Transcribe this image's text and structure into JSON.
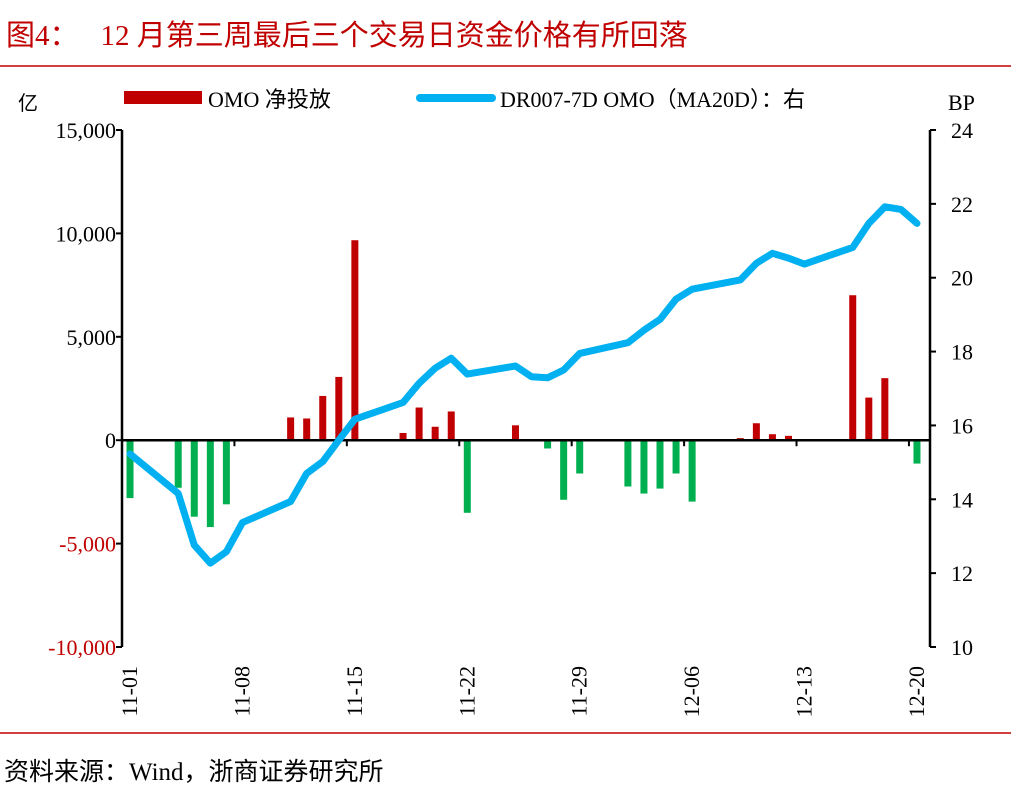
{
  "title": {
    "figure_label": "图4：",
    "text": "12 月第三周最后三个交易日资金价格有所回落"
  },
  "source": "资料来源：Wind，浙商证券研究所",
  "colors": {
    "title": "#c00000",
    "bar_positive": "#c00000",
    "bar_negative": "#00b050",
    "line": "#00b0f0",
    "rule": "#c00000",
    "negative_label": "#c00000"
  },
  "chart_data": {
    "type": "bar+line",
    "left_unit": "亿",
    "right_unit": "BP",
    "left_ylim": [
      -10000,
      15000
    ],
    "left_ticks": [
      "15,000",
      "10,000",
      "5,000",
      "0",
      "-5,000",
      "-10,000"
    ],
    "left_tick_values": [
      15000,
      10000,
      5000,
      0,
      -5000,
      -10000
    ],
    "right_ylim": [
      10,
      24
    ],
    "right_ticks": [
      "24",
      "22",
      "20",
      "18",
      "16",
      "14",
      "12",
      "10"
    ],
    "right_tick_values": [
      24,
      22,
      20,
      18,
      16,
      14,
      12,
      10
    ],
    "x_range": [
      "11-01",
      "12-20"
    ],
    "x_ticks": [
      "11-01",
      "11-08",
      "11-15",
      "11-22",
      "11-29",
      "12-06",
      "12-13",
      "12-20"
    ],
    "legend_placement": "top",
    "grid": false,
    "x": [
      "11-01",
      "11-04",
      "11-05",
      "11-06",
      "11-07",
      "11-08",
      "11-11",
      "11-12",
      "11-13",
      "11-14",
      "11-15",
      "11-18",
      "11-19",
      "11-20",
      "11-21",
      "11-22",
      "11-25",
      "11-26",
      "11-27",
      "11-28",
      "11-29",
      "12-02",
      "12-03",
      "12-04",
      "12-05",
      "12-06",
      "12-09",
      "12-10",
      "12-11",
      "12-12",
      "12-13",
      "12-16",
      "12-17",
      "12-18",
      "12-19",
      "12-20"
    ],
    "series": [
      {
        "name": "OMO 净投放",
        "type": "bar",
        "axis": "left",
        "values": [
          -2800,
          -2300,
          -3700,
          -4200,
          -3100,
          0,
          1100,
          1050,
          2140,
          3060,
          9670,
          350,
          1580,
          650,
          1390,
          -3510,
          720,
          50,
          -400,
          -2880,
          -1610,
          -2240,
          -2580,
          -2340,
          -1610,
          -2970,
          100,
          820,
          290,
          210,
          50,
          7010,
          2060,
          3000,
          50,
          -1130
        ]
      },
      {
        "name": "DR007-7D OMO（MA20D）：右",
        "type": "line",
        "axis": "right",
        "values": [
          15.23,
          14.16,
          12.76,
          12.27,
          12.58,
          13.37,
          13.94,
          14.7,
          15.02,
          15.6,
          16.17,
          16.62,
          17.14,
          17.55,
          17.82,
          17.39,
          17.61,
          17.32,
          17.29,
          17.5,
          17.95,
          18.24,
          18.58,
          18.87,
          19.42,
          19.69,
          19.94,
          20.39,
          20.66,
          20.53,
          20.37,
          20.82,
          21.47,
          21.92,
          21.85,
          21.47
        ]
      }
    ]
  }
}
